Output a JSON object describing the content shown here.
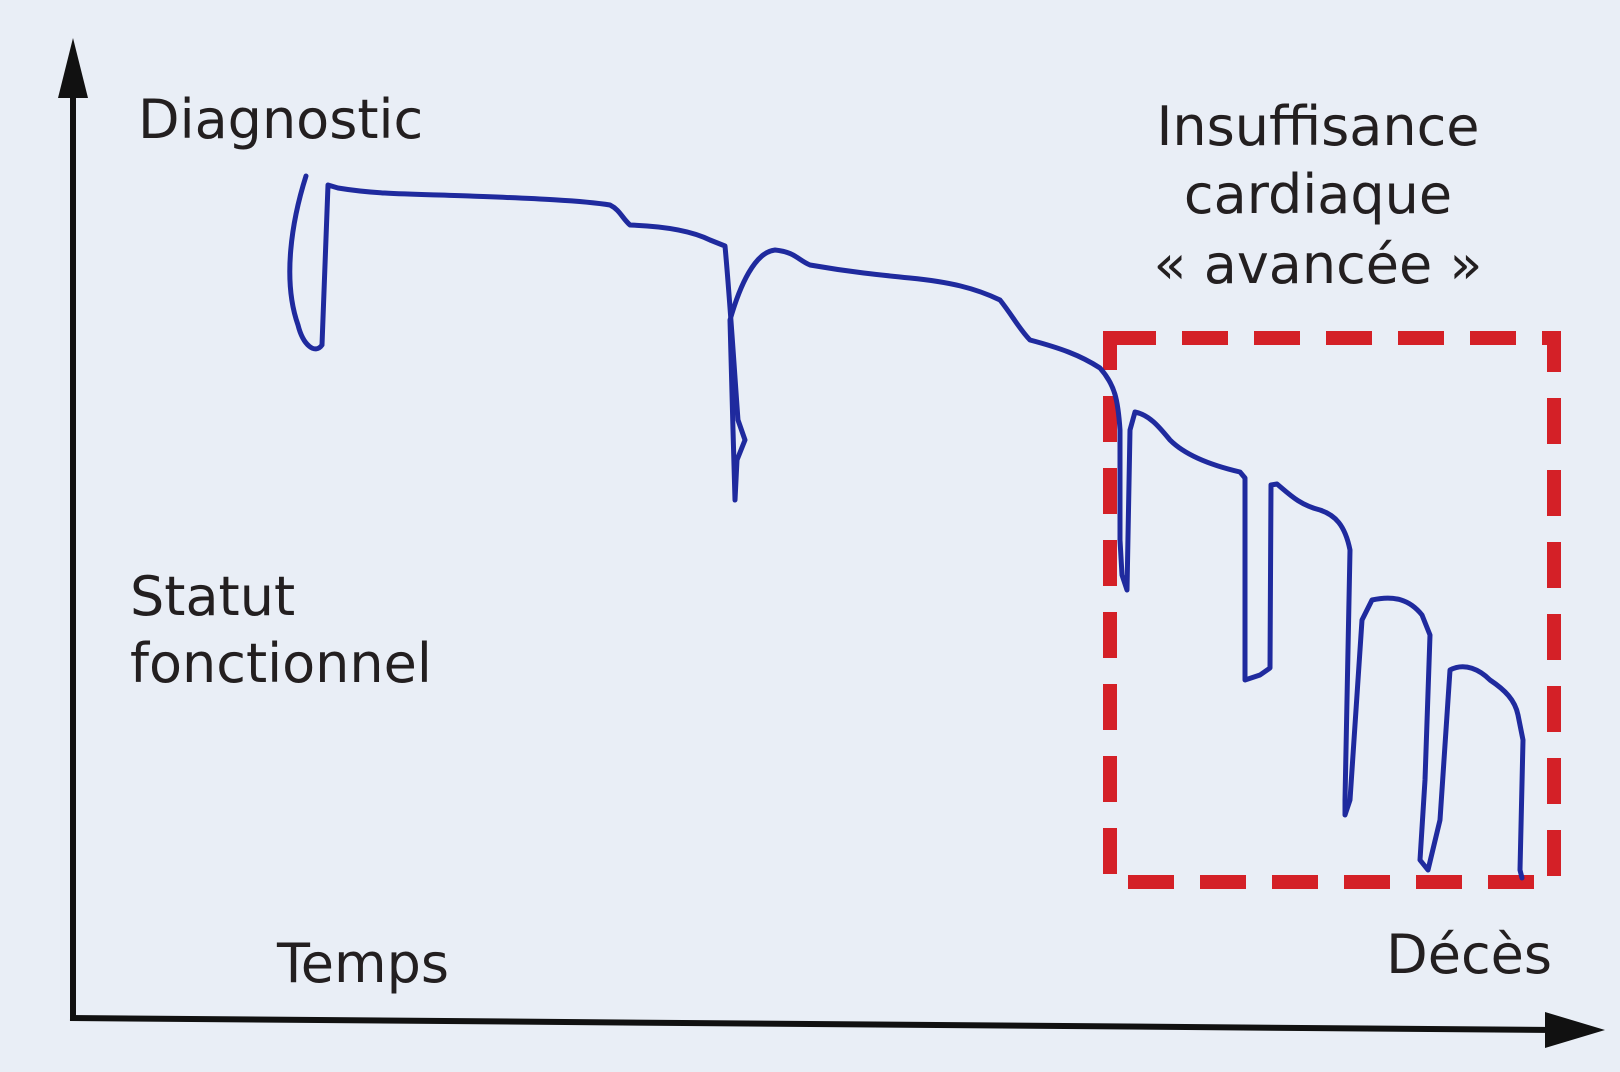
{
  "labels": {
    "diagnosis": "Diagnostic",
    "y_axis": [
      "Statut",
      "fonctionnel"
    ],
    "x_axis": "Temps",
    "advanced_hf": [
      "Insuffisance",
      "cardiaque",
      "« avancée »"
    ],
    "death": "Décès"
  },
  "colors": {
    "background": "#e9eef6",
    "axis": "#111111",
    "curve": "#1f2a9e",
    "advanced_box": "#d42027",
    "text": "#231f20"
  }
}
